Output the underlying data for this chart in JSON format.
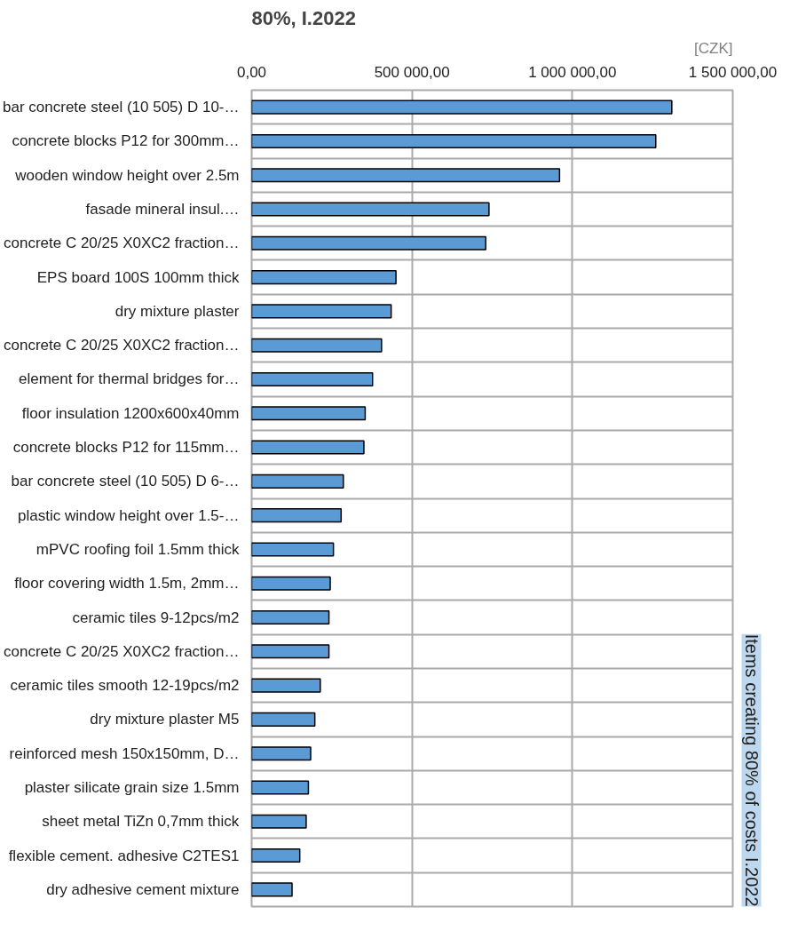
{
  "chart_data": {
    "type": "bar",
    "orientation": "horizontal",
    "title": "80%, I.2022",
    "xlabel": "[CZK]",
    "annotations": [
      "Items creating 80% of costs I.2022"
    ],
    "categories": [
      "bar concrete steel (10 505) D 10-…",
      "concrete blocks P12 for 300mm…",
      "wooden window height over 2.5m",
      "fasade mineral insul.…",
      "concrete C 20/25 X0XC2 fraction…",
      "EPS board 100S 100mm thick",
      "dry mixture plaster",
      "concrete C 20/25 X0XC2 fraction…",
      "element for thermal bridges for…",
      "floor insulation 1200x600x40mm",
      "concrete blocks P12 for 115mm…",
      "bar concrete steel (10 505) D 6-…",
      "plastic window height over 1.5-…",
      "mPVC roofing foil 1.5mm thick",
      "floor covering width 1.5m, 2mm…",
      "ceramic tiles 9-12pcs/m2",
      "concrete C 20/25 X0XC2 fraction…",
      "ceramic tiles smooth 12-19pcs/m2",
      "dry mixture plaster M5",
      "reinforced mesh 150x150mm, D…",
      "plaster silicate grain size 1.5mm",
      "sheet metal TiZn 0,7mm thick",
      "flexible cement. adhesive C2TES1",
      "dry adhesive cement mixture"
    ],
    "values": [
      1310000,
      1260000,
      960000,
      740000,
      730000,
      450000,
      435000,
      405000,
      377000,
      354000,
      350000,
      286000,
      279000,
      255000,
      245000,
      241000,
      241000,
      214000,
      197000,
      184000,
      177000,
      170000,
      150000,
      126000
    ],
    "color": "#5b9bd5",
    "xlim": [
      0,
      1500000
    ],
    "xticks": [
      {
        "value": 0,
        "label": "0,00"
      },
      {
        "value": 500000,
        "label": "500 000,00"
      },
      {
        "value": 1000000,
        "label": "1 000 000,00"
      },
      {
        "value": 1500000,
        "label": "1 500 000,00"
      }
    ],
    "grid": true
  }
}
